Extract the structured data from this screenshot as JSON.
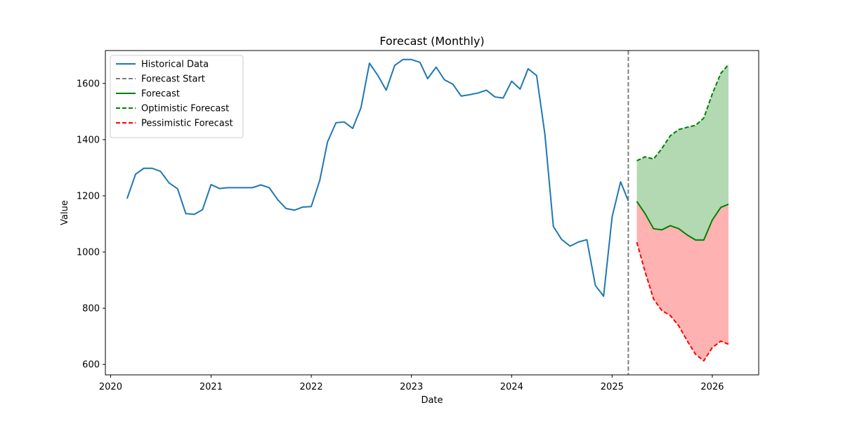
{
  "chart_data": {
    "type": "line",
    "title": "Forecast (Monthly)",
    "xlabel": "Date",
    "ylabel": "Value",
    "xlim": [
      "2019-12-13",
      "2026-06-19"
    ],
    "ylim": [
      563,
      1717
    ],
    "x_ticks": [
      {
        "value": "2020-01-01",
        "label": "2020"
      },
      {
        "value": "2021-01-01",
        "label": "2021"
      },
      {
        "value": "2022-01-01",
        "label": "2022"
      },
      {
        "value": "2023-01-01",
        "label": "2023"
      },
      {
        "value": "2024-01-01",
        "label": "2024"
      },
      {
        "value": "2025-01-01",
        "label": "2025"
      },
      {
        "value": "2026-01-01",
        "label": "2026"
      }
    ],
    "y_ticks": [
      600,
      800,
      1000,
      1200,
      1400,
      1600
    ],
    "grid": false,
    "legend_position": "top-left",
    "forecast_start": "2025-03-01",
    "series": [
      {
        "name": "Historical Data",
        "color": "#1f77b4",
        "style": "solid",
        "x": [
          "2020-03-01",
          "2020-04-01",
          "2020-05-01",
          "2020-06-01",
          "2020-07-01",
          "2020-08-01",
          "2020-09-01",
          "2020-10-01",
          "2020-11-01",
          "2020-12-01",
          "2021-01-01",
          "2021-02-01",
          "2021-03-01",
          "2021-04-01",
          "2021-05-01",
          "2021-06-01",
          "2021-07-01",
          "2021-08-01",
          "2021-09-01",
          "2021-10-01",
          "2021-11-01",
          "2021-12-01",
          "2022-01-01",
          "2022-02-01",
          "2022-03-01",
          "2022-04-01",
          "2022-05-01",
          "2022-06-01",
          "2022-07-01",
          "2022-08-01",
          "2022-09-01",
          "2022-10-01",
          "2022-11-01",
          "2022-12-01",
          "2023-01-01",
          "2023-02-01",
          "2023-03-01",
          "2023-04-01",
          "2023-05-01",
          "2023-06-01",
          "2023-07-01",
          "2023-08-01",
          "2023-09-01",
          "2023-10-01",
          "2023-11-01",
          "2023-12-01",
          "2024-01-01",
          "2024-02-01",
          "2024-03-01",
          "2024-04-01",
          "2024-05-01",
          "2024-06-01",
          "2024-07-01",
          "2024-08-01",
          "2024-09-01",
          "2024-10-01",
          "2024-11-01",
          "2024-12-01",
          "2025-01-01",
          "2025-02-01",
          "2025-03-01"
        ],
        "values": [
          1190,
          1277,
          1298,
          1298,
          1287,
          1246,
          1225,
          1137,
          1134,
          1151,
          1240,
          1226,
          1229,
          1229,
          1229,
          1229,
          1239,
          1229,
          1186,
          1155,
          1149,
          1160,
          1162,
          1255,
          1391,
          1460,
          1463,
          1440,
          1513,
          1672,
          1628,
          1576,
          1664,
          1685,
          1685,
          1675,
          1617,
          1658,
          1613,
          1597,
          1555,
          1560,
          1566,
          1576,
          1552,
          1548,
          1608,
          1580,
          1652,
          1628,
          1420,
          1091,
          1045,
          1021,
          1036,
          1044,
          881,
          843,
          1125,
          1250,
          1182
        ]
      },
      {
        "name": "Forecast",
        "color": "#008000",
        "style": "solid",
        "x": [
          "2025-04-01",
          "2025-05-01",
          "2025-06-01",
          "2025-07-01",
          "2025-08-01",
          "2025-09-01",
          "2025-10-01",
          "2025-11-01",
          "2025-12-01",
          "2026-01-01",
          "2026-02-01",
          "2026-03-01"
        ],
        "values": [
          1180,
          1137,
          1083,
          1079,
          1094,
          1083,
          1061,
          1043,
          1043,
          1114,
          1159,
          1170
        ]
      },
      {
        "name": "Optimistic Forecast",
        "color": "#008000",
        "style": "dashed",
        "x": [
          "2025-04-01",
          "2025-05-01",
          "2025-06-01",
          "2025-07-01",
          "2025-08-01",
          "2025-09-01",
          "2025-10-01",
          "2025-11-01",
          "2025-12-01",
          "2026-01-01",
          "2026-02-01",
          "2026-03-01"
        ],
        "values": [
          1325,
          1339,
          1331,
          1368,
          1414,
          1436,
          1444,
          1451,
          1477,
          1563,
          1636,
          1667
        ]
      },
      {
        "name": "Pessimistic Forecast",
        "color": "#ff0000",
        "style": "dashed",
        "x": [
          "2025-04-01",
          "2025-05-01",
          "2025-06-01",
          "2025-07-01",
          "2025-08-01",
          "2025-09-01",
          "2025-10-01",
          "2025-11-01",
          "2025-12-01",
          "2026-01-01",
          "2026-02-01",
          "2026-03-01"
        ],
        "values": [
          1035,
          930,
          833,
          792,
          774,
          737,
          685,
          636,
          613,
          660,
          683,
          672
        ]
      }
    ],
    "bands": [
      {
        "color": "#008000",
        "opacity": 0.3,
        "between": [
          "Forecast",
          "Optimistic Forecast"
        ]
      },
      {
        "color": "#ff0000",
        "opacity": 0.3,
        "between": [
          "Pessimistic Forecast",
          "Forecast"
        ]
      }
    ],
    "legend": [
      {
        "label": "Historical Data",
        "color": "#1f77b4",
        "style": "solid"
      },
      {
        "label": "Forecast Start",
        "color": "#808080",
        "style": "dashed"
      },
      {
        "label": "Forecast",
        "color": "#008000",
        "style": "solid"
      },
      {
        "label": "Optimistic Forecast",
        "color": "#008000",
        "style": "dashed"
      },
      {
        "label": "Pessimistic Forecast",
        "color": "#ff0000",
        "style": "dashed"
      }
    ],
    "vline_color": "#808080"
  }
}
